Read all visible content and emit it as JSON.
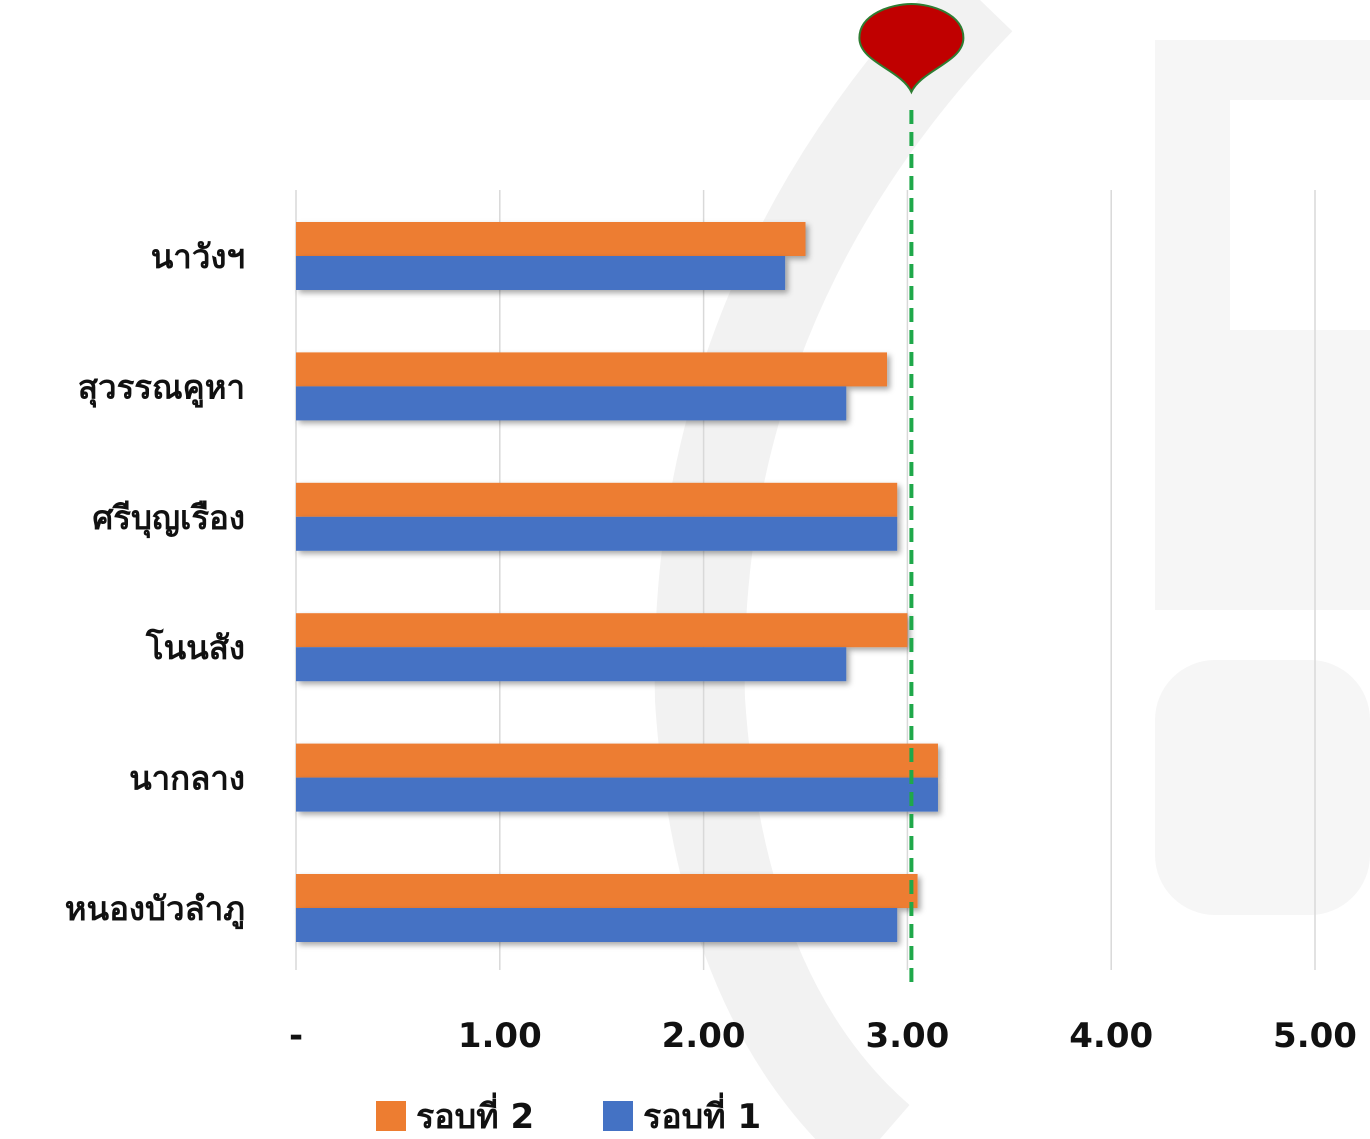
{
  "chart_data": {
    "type": "bar",
    "orientation": "horizontal",
    "categories": [
      "นาวังฯ",
      "สุวรรณคูหา",
      "ศรีบุญเรือง",
      "โนนสัง",
      "นากลาง",
      "หนองบัวลำภู"
    ],
    "series": [
      {
        "name": "รอบที่ 2",
        "color": "#ED7D31",
        "values": [
          2.5,
          2.9,
          2.95,
          3.0,
          3.15,
          3.05
        ]
      },
      {
        "name": "รอบที่ 1",
        "color": "#4472C4",
        "values": [
          2.4,
          2.7,
          2.95,
          2.7,
          3.15,
          2.95
        ]
      }
    ],
    "xlim": [
      0,
      5
    ],
    "x_ticks": [
      0,
      1,
      2,
      3,
      4,
      5
    ],
    "x_tick_labels": [
      "-",
      "1.00",
      "2.00",
      "3.00",
      "4.00",
      "5.00"
    ],
    "reference_line": {
      "value": 3.0,
      "color": "#1FA84A",
      "style": "dashed"
    },
    "marker_color": "#C00000",
    "grid": "vertical",
    "legend_position": "bottom",
    "title": "",
    "xlabel": "",
    "ylabel": ""
  }
}
